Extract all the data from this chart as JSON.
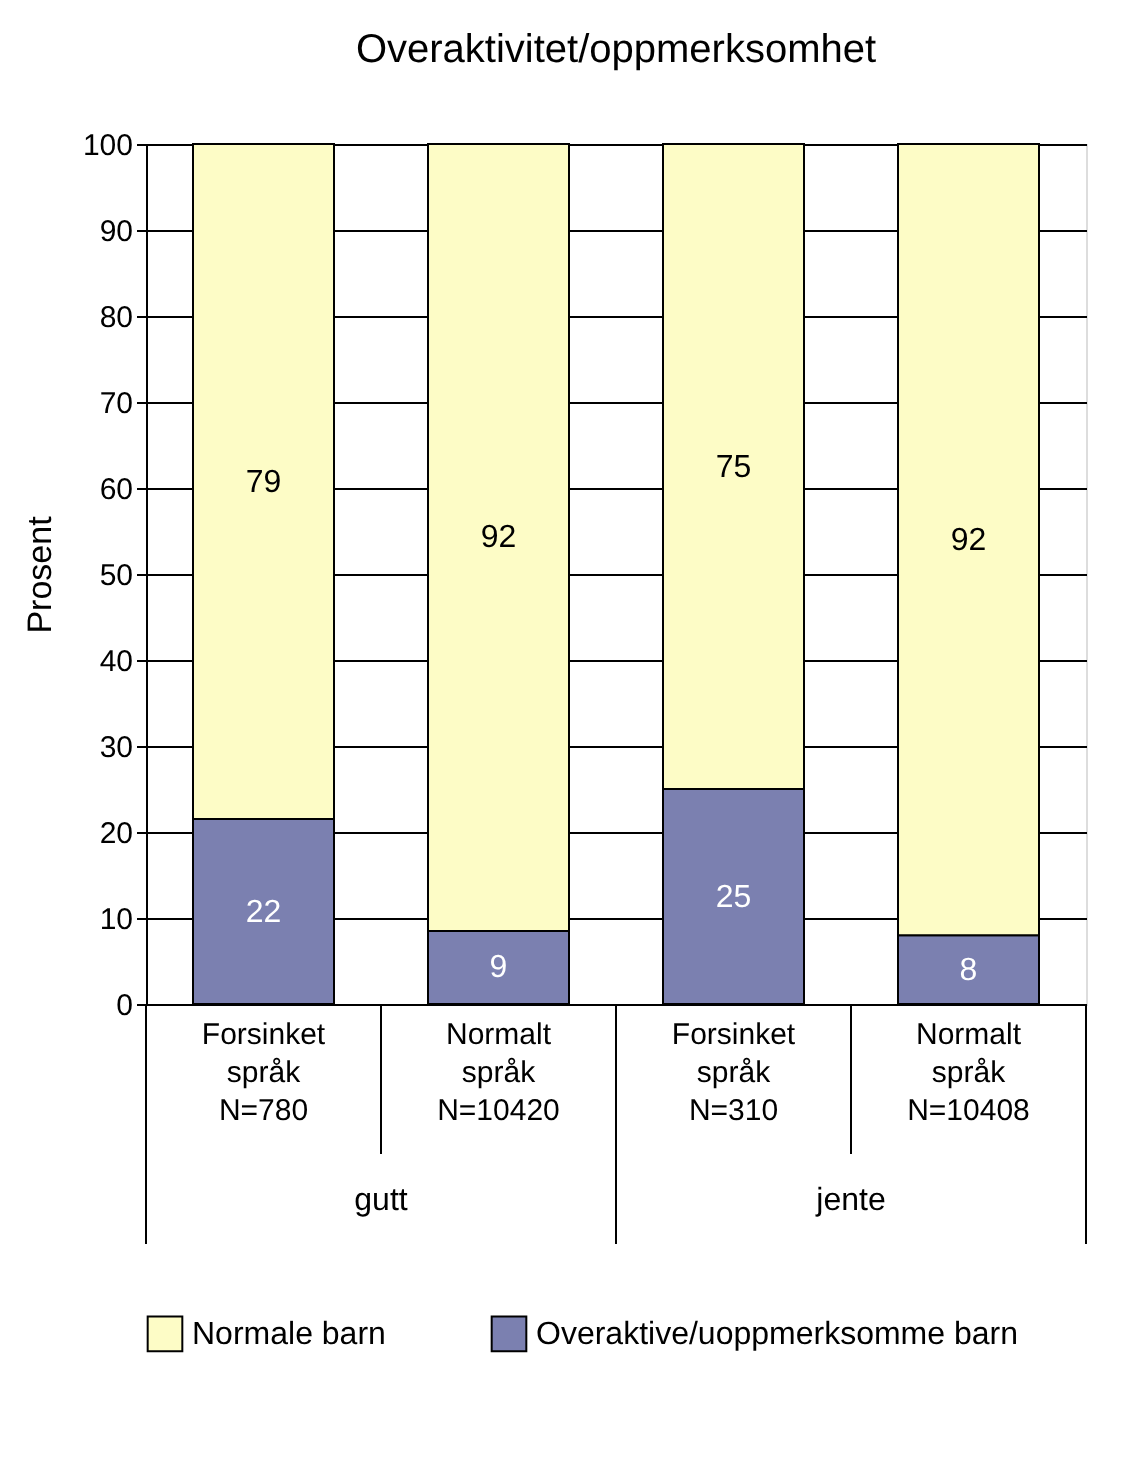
{
  "chart_data": {
    "type": "bar",
    "title": "Overaktivitet/oppmerksomhet",
    "ylabel": "Prosent",
    "categories": [
      "Forsinket\nspråk\nN=780",
      "Normalt\nspråk\nN=10420",
      "Forsinket\nspråk\nN=310",
      "Normalt\nspråk\nN=10408"
    ],
    "annotations": [
      "gutt",
      "jente"
    ],
    "stacked": true,
    "series": [
      {
        "name": "Overaktive/uoppmerksomme barn",
        "color": "#7b80b0",
        "values": [
          21.5,
          8.5,
          25,
          8
        ],
        "value_labels": [
          "22",
          "9",
          "25",
          "8"
        ]
      },
      {
        "name": "Normale barn",
        "color": "#fdfcc6",
        "values": [
          78.5,
          91.5,
          75,
          92
        ],
        "value_labels": [
          "79",
          "92",
          "75",
          "92"
        ]
      }
    ],
    "ylim": [
      0,
      100
    ],
    "yticks": [
      0,
      10,
      20,
      30,
      40,
      50,
      60,
      70,
      80,
      90,
      100
    ],
    "grid": "y",
    "legend": "bottom"
  }
}
